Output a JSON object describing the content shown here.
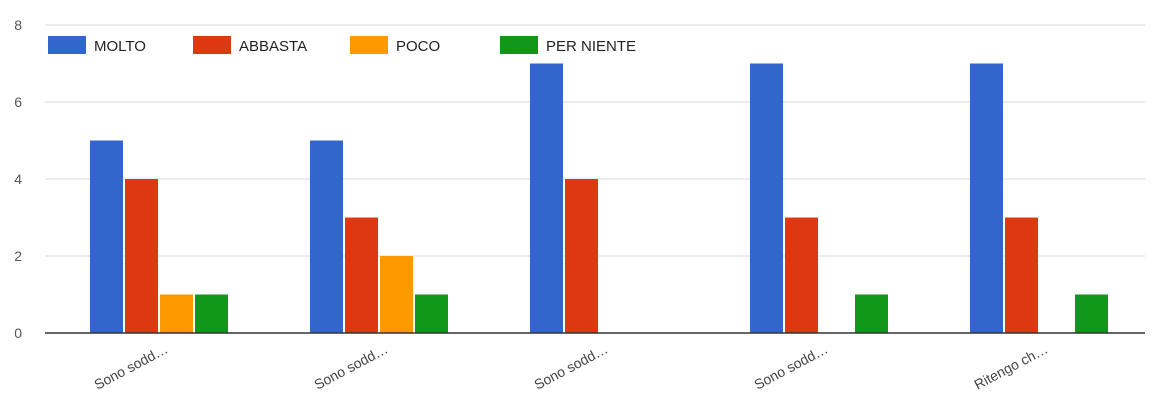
{
  "chart_data": {
    "type": "bar",
    "categories": [
      "Sono sodd…",
      "Sono sodd…",
      "Sono sodd…",
      "Sono sodd…",
      "Ritengo ch…"
    ],
    "series": [
      {
        "name": "MOLTO",
        "color": "#3366cc",
        "values": [
          5,
          5,
          7,
          7,
          7
        ]
      },
      {
        "name": "ABBASTA",
        "color": "#dc3912",
        "values": [
          4,
          3,
          4,
          3,
          3
        ]
      },
      {
        "name": "POCO",
        "color": "#ff9900",
        "values": [
          1,
          2,
          0,
          0,
          0
        ]
      },
      {
        "name": "PER NIENTE",
        "color": "#109618",
        "values": [
          1,
          1,
          0,
          1,
          1
        ]
      }
    ],
    "title": "",
    "xlabel": "",
    "ylabel": "",
    "ylim": [
      0,
      8
    ],
    "yticks": [
      0,
      2,
      4,
      6,
      8
    ],
    "grid": true,
    "legend_position": "top-left"
  }
}
